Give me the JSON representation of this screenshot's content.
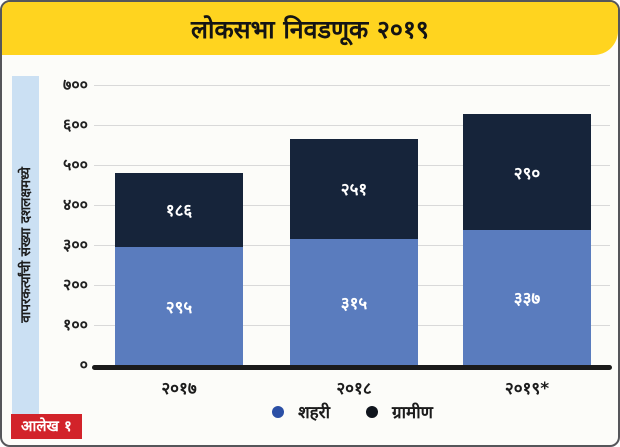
{
  "header": {
    "title": "लोकसभा निवडणूक २०१९",
    "background": "#ffd41f"
  },
  "badge": {
    "label": "आलेख १",
    "background": "#d2232a"
  },
  "chart_data": {
    "type": "bar",
    "stacked": true,
    "title": "लोकसभा निवडणूक २०१९",
    "ylabel": "वापरकर्त्यांची संख्या दशलक्षमध्ये",
    "xlabel": "",
    "ylim": [
      0,
      700
    ],
    "grid": true,
    "legend_position": "bottom",
    "categories": [
      "२०१७",
      "२०१८",
      "२०१९*"
    ],
    "series": [
      {
        "name": "शहरी",
        "color": "#5a7cbe",
        "values": [
          295,
          315,
          337
        ],
        "value_labels": [
          "२९५",
          "३१५",
          "३३७"
        ]
      },
      {
        "name": "ग्रामीण",
        "color": "#16243a",
        "values": [
          186,
          251,
          290
        ],
        "value_labels": [
          "१८६",
          "२५१",
          "२९०"
        ]
      }
    ],
    "yticks": [
      {
        "value": 0,
        "label": "०"
      },
      {
        "value": 100,
        "label": "१००"
      },
      {
        "value": 200,
        "label": "२००"
      },
      {
        "value": 300,
        "label": "३००"
      },
      {
        "value": 400,
        "label": "४००"
      },
      {
        "value": 500,
        "label": "५००"
      },
      {
        "value": 600,
        "label": "६००"
      },
      {
        "value": 700,
        "label": "७००"
      }
    ],
    "legend": [
      {
        "label": "शहरी",
        "color": "#2b4fa5"
      },
      {
        "label": "ग्रामीण",
        "color": "#10151d"
      }
    ],
    "axis_color": "#1b1b1b",
    "gridline_color": "#d9d9d9"
  }
}
